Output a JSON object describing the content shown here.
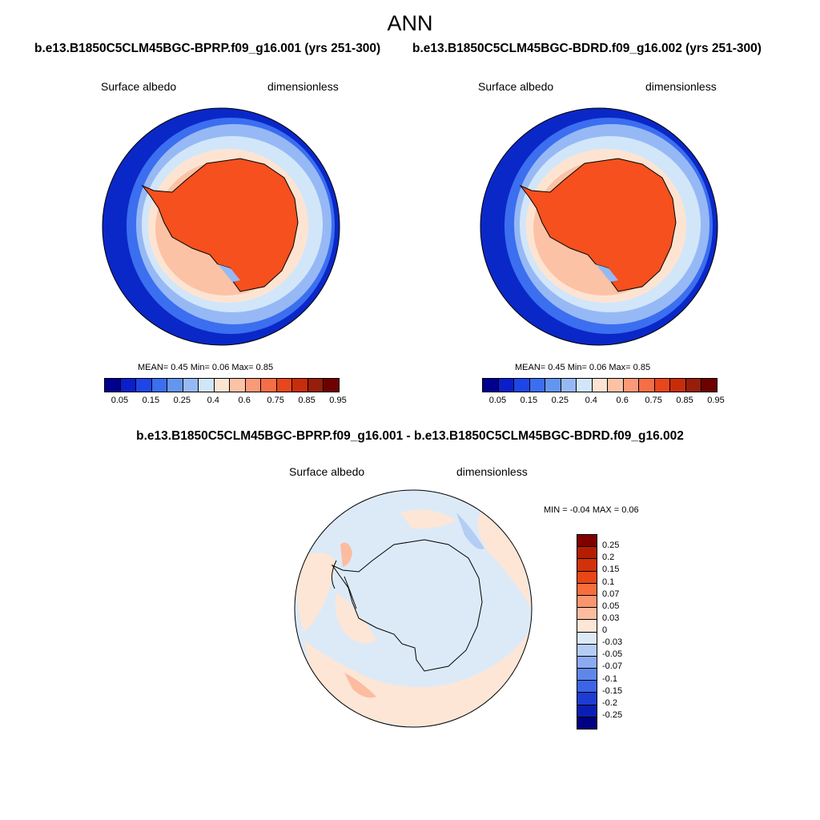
{
  "figure": {
    "title": "ANN"
  },
  "panels": [
    {
      "case": "b.e13.B1850C5CLM45BGC-BPRP.f09_g16.001 (yrs 251-300)",
      "variable": "Surface albedo",
      "units": "dimensionless",
      "stats": "MEAN=   0.45  Min=   0.06  Max=   0.85",
      "colorbar": {
        "ticks": [
          "0.05",
          "0.15",
          "0.25",
          "0.4",
          "0.6",
          "0.75",
          "0.85",
          "0.95"
        ],
        "colors": [
          "#00008f",
          "#0a1ecc",
          "#1e46e6",
          "#3c6ef0",
          "#6496f0",
          "#96b9f5",
          "#d2e6fa",
          "#fde4d2",
          "#fcc2a6",
          "#fa9a78",
          "#f56e46",
          "#e8461c",
          "#c82d0a",
          "#961e0a",
          "#6e0000"
        ]
      }
    },
    {
      "case": "b.e13.B1850C5CLM45BGC-BDRD.f09_g16.002 (yrs 251-300)",
      "variable": "Surface albedo",
      "units": "dimensionless",
      "stats": "MEAN=   0.45  Min=   0.06  Max=   0.85",
      "colorbar": {
        "ticks": [
          "0.05",
          "0.15",
          "0.25",
          "0.4",
          "0.6",
          "0.75",
          "0.85",
          "0.95"
        ],
        "colors": [
          "#00008f",
          "#0a1ecc",
          "#1e46e6",
          "#3c6ef0",
          "#6496f0",
          "#96b9f5",
          "#d2e6fa",
          "#fde4d2",
          "#fcc2a6",
          "#fa9a78",
          "#f56e46",
          "#e8461c",
          "#c82d0a",
          "#961e0a",
          "#6e0000"
        ]
      }
    }
  ],
  "difference": {
    "title": "b.e13.B1850C5CLM45BGC-BPRP.f09_g16.001 - b.e13.B1850C5CLM45BGC-BDRD.f09_g16.002",
    "variable": "Surface albedo",
    "units": "dimensionless",
    "stats": "MIN =  -0.04 MAX =   0.06",
    "colorbar": {
      "ticks": [
        "0.25",
        "0.2",
        "0.15",
        "0.1",
        "0.07",
        "0.05",
        "0.03",
        "0",
        "-0.03",
        "-0.05",
        "-0.07",
        "-0.1",
        "-0.15",
        "-0.2",
        "-0.25"
      ],
      "colors": [
        "#800000",
        "#b41e00",
        "#d2320a",
        "#e84614",
        "#f56e3c",
        "#fa966e",
        "#fcbca0",
        "#fde6d6",
        "#dceaf8",
        "#b4cdf5",
        "#8caaf0",
        "#5f87eb",
        "#3c64e6",
        "#1e3cd2",
        "#0a1eb4",
        "#000080"
      ]
    }
  },
  "colors": {
    "ocean_deep": "#0a28c8",
    "ocean_mid": "#3c6ef0",
    "ocean_light": "#96b9f5",
    "ocean_pale": "#d2e6fa",
    "ice_edge": "#fde4d2",
    "ice_mid": "#fcc2a6",
    "land": "#f5501e",
    "diff_zero": "#dceaf8",
    "diff_pos": "#fde6d6"
  }
}
